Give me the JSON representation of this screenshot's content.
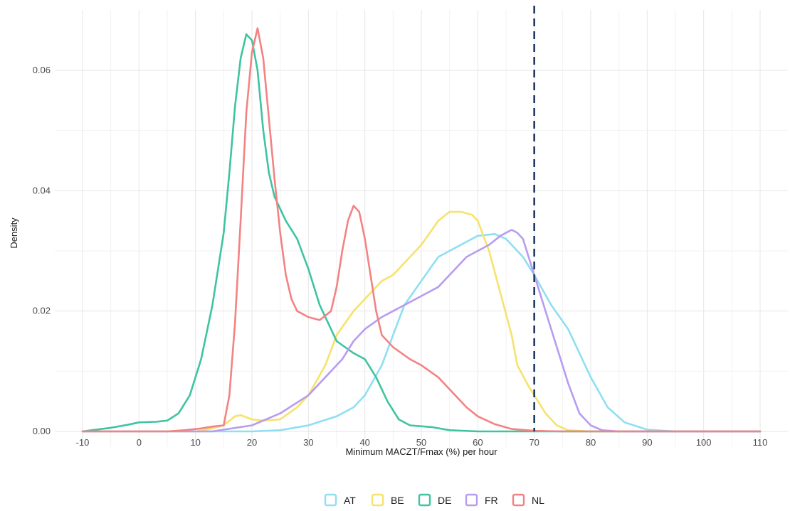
{
  "chart_data": {
    "type": "line",
    "xlabel": "Minimum MACZT/Fmax (%) per hour",
    "ylabel": "Density",
    "xlim": [
      -10,
      110
    ],
    "ylim": [
      0,
      0.067
    ],
    "x_ticks": [
      "-10",
      "0",
      "10",
      "20",
      "30",
      "40",
      "50",
      "60",
      "70",
      "80",
      "90",
      "100",
      "110"
    ],
    "y_ticks": [
      "0.00",
      "0.02",
      "0.04",
      "0.06"
    ],
    "grid": true,
    "legend_position": "bottom",
    "reference_line": {
      "x": 70,
      "style": "dashed",
      "color": "#1f3a5f"
    },
    "series": [
      {
        "name": "AT",
        "color": "#8fdff2",
        "points": [
          [
            -10,
            0
          ],
          [
            20,
            0
          ],
          [
            25,
            0.0002
          ],
          [
            30,
            0.001
          ],
          [
            35,
            0.0025
          ],
          [
            38,
            0.004
          ],
          [
            40,
            0.006
          ],
          [
            43,
            0.011
          ],
          [
            45,
            0.016
          ],
          [
            47,
            0.021
          ],
          [
            50,
            0.025
          ],
          [
            53,
            0.029
          ],
          [
            55,
            0.03
          ],
          [
            57,
            0.031
          ],
          [
            60,
            0.0325
          ],
          [
            63,
            0.0328
          ],
          [
            65,
            0.032
          ],
          [
            68,
            0.029
          ],
          [
            70,
            0.026
          ],
          [
            73,
            0.021
          ],
          [
            76,
            0.017
          ],
          [
            80,
            0.009
          ],
          [
            83,
            0.004
          ],
          [
            86,
            0.0015
          ],
          [
            90,
            0.0003
          ],
          [
            95,
            0
          ],
          [
            110,
            0
          ]
        ]
      },
      {
        "name": "BE",
        "color": "#f7e26b",
        "points": [
          [
            -10,
            0
          ],
          [
            10,
            0
          ],
          [
            13,
            0.0005
          ],
          [
            15,
            0.001
          ],
          [
            17,
            0.0025
          ],
          [
            18,
            0.0027
          ],
          [
            20,
            0.002
          ],
          [
            22,
            0.0018
          ],
          [
            25,
            0.002
          ],
          [
            28,
            0.004
          ],
          [
            30,
            0.006
          ],
          [
            33,
            0.011
          ],
          [
            35,
            0.016
          ],
          [
            38,
            0.02
          ],
          [
            40,
            0.022
          ],
          [
            43,
            0.025
          ],
          [
            45,
            0.026
          ],
          [
            48,
            0.029
          ],
          [
            50,
            0.031
          ],
          [
            53,
            0.035
          ],
          [
            55,
            0.0365
          ],
          [
            57,
            0.0365
          ],
          [
            59,
            0.036
          ],
          [
            60,
            0.035
          ],
          [
            62,
            0.03
          ],
          [
            64,
            0.023
          ],
          [
            66,
            0.016
          ],
          [
            67,
            0.011
          ],
          [
            69,
            0.0075
          ],
          [
            70,
            0.006
          ],
          [
            72,
            0.003
          ],
          [
            74,
            0.001
          ],
          [
            76,
            0.0002
          ],
          [
            80,
            0
          ],
          [
            110,
            0
          ]
        ]
      },
      {
        "name": "DE",
        "color": "#3ec4a0",
        "points": [
          [
            -10,
            0
          ],
          [
            -5,
            0.0006
          ],
          [
            -2,
            0.0011
          ],
          [
            0,
            0.0015
          ],
          [
            3,
            0.0016
          ],
          [
            5,
            0.0018
          ],
          [
            7,
            0.003
          ],
          [
            9,
            0.006
          ],
          [
            11,
            0.012
          ],
          [
            13,
            0.021
          ],
          [
            15,
            0.033
          ],
          [
            16,
            0.043
          ],
          [
            17,
            0.054
          ],
          [
            18,
            0.062
          ],
          [
            19,
            0.066
          ],
          [
            20,
            0.065
          ],
          [
            21,
            0.06
          ],
          [
            22,
            0.05
          ],
          [
            23,
            0.043
          ],
          [
            24,
            0.039
          ],
          [
            26,
            0.035
          ],
          [
            28,
            0.032
          ],
          [
            30,
            0.027
          ],
          [
            32,
            0.021
          ],
          [
            35,
            0.015
          ],
          [
            38,
            0.013
          ],
          [
            40,
            0.012
          ],
          [
            42,
            0.009
          ],
          [
            44,
            0.005
          ],
          [
            46,
            0.002
          ],
          [
            48,
            0.001
          ],
          [
            52,
            0.0007
          ],
          [
            55,
            0.0002
          ],
          [
            60,
            0
          ],
          [
            110,
            0
          ]
        ]
      },
      {
        "name": "FR",
        "color": "#b79cf0",
        "points": [
          [
            -10,
            0
          ],
          [
            13,
            0
          ],
          [
            15,
            0.0003
          ],
          [
            20,
            0.001
          ],
          [
            25,
            0.003
          ],
          [
            30,
            0.006
          ],
          [
            33,
            0.009
          ],
          [
            36,
            0.012
          ],
          [
            38,
            0.015
          ],
          [
            40,
            0.017
          ],
          [
            43,
            0.019
          ],
          [
            45,
            0.02
          ],
          [
            50,
            0.0225
          ],
          [
            53,
            0.024
          ],
          [
            55,
            0.026
          ],
          [
            58,
            0.029
          ],
          [
            60,
            0.03
          ],
          [
            62,
            0.031
          ],
          [
            64,
            0.0325
          ],
          [
            66,
            0.0335
          ],
          [
            67,
            0.033
          ],
          [
            68,
            0.032
          ],
          [
            70,
            0.026
          ],
          [
            72,
            0.02
          ],
          [
            74,
            0.014
          ],
          [
            76,
            0.008
          ],
          [
            78,
            0.003
          ],
          [
            80,
            0.001
          ],
          [
            82,
            0.0002
          ],
          [
            85,
            0
          ],
          [
            110,
            0
          ]
        ]
      },
      {
        "name": "NL",
        "color": "#f38383",
        "points": [
          [
            -10,
            0
          ],
          [
            5,
            0
          ],
          [
            8,
            0.0002
          ],
          [
            11,
            0.0005
          ],
          [
            13,
            0.0008
          ],
          [
            15,
            0.001
          ],
          [
            16,
            0.006
          ],
          [
            17,
            0.018
          ],
          [
            18,
            0.035
          ],
          [
            19,
            0.053
          ],
          [
            20,
            0.063
          ],
          [
            21,
            0.067
          ],
          [
            22,
            0.062
          ],
          [
            23,
            0.052
          ],
          [
            24,
            0.042
          ],
          [
            25,
            0.033
          ],
          [
            26,
            0.026
          ],
          [
            27,
            0.022
          ],
          [
            28,
            0.02
          ],
          [
            30,
            0.019
          ],
          [
            32,
            0.0185
          ],
          [
            34,
            0.02
          ],
          [
            35,
            0.024
          ],
          [
            36,
            0.03
          ],
          [
            37,
            0.035
          ],
          [
            38,
            0.0375
          ],
          [
            39,
            0.0365
          ],
          [
            40,
            0.032
          ],
          [
            41,
            0.026
          ],
          [
            42,
            0.02
          ],
          [
            43,
            0.016
          ],
          [
            45,
            0.014
          ],
          [
            48,
            0.012
          ],
          [
            50,
            0.011
          ],
          [
            53,
            0.009
          ],
          [
            56,
            0.006
          ],
          [
            58,
            0.004
          ],
          [
            60,
            0.0025
          ],
          [
            63,
            0.0012
          ],
          [
            66,
            0.0004
          ],
          [
            70,
            0.0001
          ],
          [
            75,
            0
          ],
          [
            110,
            0
          ]
        ]
      }
    ]
  }
}
